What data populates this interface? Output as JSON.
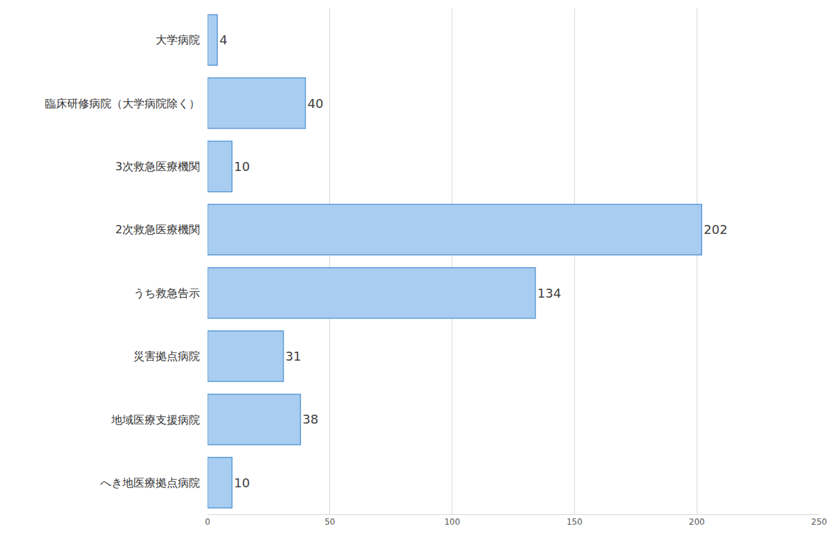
{
  "chart_data": {
    "type": "bar",
    "orientation": "horizontal",
    "categories": [
      "大学病院",
      "臨床研修病院（大学病院除く）",
      "3次救急医療機関",
      "2次救急医療機関",
      "うち救急告示",
      "災害拠点病院",
      "地域医療支援病院",
      "へき地医療拠点病院"
    ],
    "values": [
      4,
      40,
      10,
      202,
      134,
      31,
      38,
      10
    ],
    "color": "#a9cdf0",
    "xlim": [
      0,
      250
    ],
    "xticks": [
      0,
      50,
      100,
      150,
      200,
      250
    ],
    "grid": true,
    "data_labels": true
  }
}
